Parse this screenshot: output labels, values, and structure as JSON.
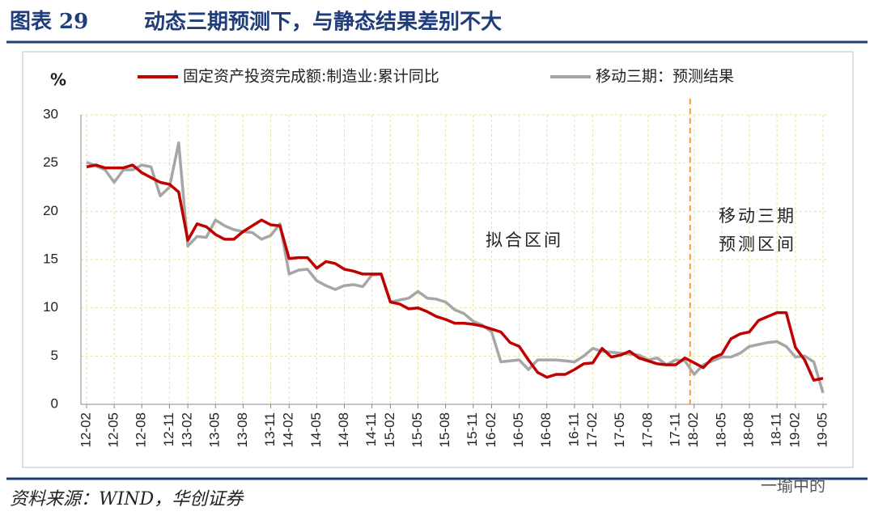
{
  "chart_data": {
    "type": "line",
    "title": "图表 29",
    "subtitle": "动态三期预测下，与静态结果差别不大",
    "y_label": "%",
    "source": "资料来源：WIND，华创证券",
    "watermark": "一瑜中的",
    "annotations": [
      "拟合区间",
      [
        "移动三期",
        "预测区间"
      ]
    ],
    "divider": "18-02",
    "grid": true,
    "legend": "top",
    "ylim": [
      0,
      30
    ],
    "yticks": [
      0,
      5,
      10,
      15,
      20,
      25,
      30
    ],
    "categories": [
      "12-02",
      null,
      null,
      "12-05",
      null,
      null,
      "12-08",
      null,
      null,
      "12-11",
      null,
      "13-02",
      null,
      null,
      "13-05",
      null,
      null,
      "13-08",
      null,
      null,
      "13-11",
      null,
      "14-02",
      null,
      null,
      "14-05",
      null,
      null,
      "14-08",
      null,
      null,
      "14-11",
      null,
      "15-02",
      null,
      null,
      "15-05",
      null,
      null,
      "15-08",
      null,
      null,
      "15-11",
      null,
      "16-02",
      null,
      null,
      "16-05",
      null,
      null,
      "16-08",
      null,
      null,
      "16-11",
      null,
      "17-02",
      null,
      null,
      "17-05",
      null,
      null,
      "17-08",
      null,
      null,
      "17-11",
      null,
      "18-02",
      null,
      null,
      "18-05",
      null,
      null,
      "18-08",
      null,
      null,
      "18-11",
      null,
      "19-02",
      null,
      null,
      "19-05"
    ],
    "series": [
      {
        "name": "固定资产投资完成额:制造业:累计同比",
        "color": "#c00000",
        "values": [
          24.6,
          24.8,
          24.5,
          24.5,
          24.5,
          24.8,
          24.0,
          23.5,
          23.0,
          22.8,
          22.0,
          17.0,
          18.7,
          18.4,
          17.6,
          17.1,
          17.1,
          17.9,
          18.5,
          19.1,
          18.6,
          18.5,
          15.1,
          15.2,
          15.2,
          14.1,
          14.8,
          14.6,
          14.0,
          13.8,
          13.5,
          13.5,
          13.5,
          10.6,
          10.4,
          9.9,
          10.0,
          9.6,
          9.1,
          8.8,
          8.4,
          8.4,
          8.3,
          8.1,
          7.8,
          7.5,
          6.4,
          6.0,
          4.6,
          3.3,
          2.8,
          3.1,
          3.1,
          3.6,
          4.2,
          4.3,
          5.8,
          4.9,
          5.1,
          5.5,
          4.8,
          4.5,
          4.2,
          4.1,
          4.1,
          4.8,
          4.3,
          3.8,
          4.8,
          5.2,
          6.8,
          7.3,
          7.5,
          8.7,
          9.1,
          9.5,
          9.5,
          5.9,
          4.6,
          2.5,
          2.7
        ]
      },
      {
        "name": "移动三期：预测结果",
        "color": "#a6a6a6",
        "values": [
          25.1,
          24.7,
          24.3,
          23.0,
          24.3,
          24.3,
          24.8,
          24.6,
          21.6,
          22.5,
          27.1,
          16.4,
          17.4,
          17.3,
          19.1,
          18.5,
          18.1,
          17.9,
          17.8,
          17.1,
          17.5,
          18.7,
          13.5,
          13.9,
          14.0,
          12.8,
          12.3,
          11.9,
          12.3,
          12.4,
          12.2,
          13.4,
          13.5,
          10.6,
          10.8,
          11.0,
          11.7,
          11.0,
          10.9,
          10.6,
          9.8,
          9.4,
          8.6,
          8.2,
          7.5,
          4.4,
          4.5,
          4.6,
          3.6,
          4.6,
          4.6,
          4.6,
          4.5,
          4.4,
          5.0,
          5.8,
          5.5,
          5.4,
          5.3,
          5.2,
          5.1,
          4.6,
          4.8,
          4.1,
          4.6,
          4.5,
          3.1,
          4.1,
          4.5,
          4.9,
          4.9,
          5.3,
          6.0,
          6.2,
          6.4,
          6.5,
          6.0,
          4.9,
          5.0,
          4.4,
          1.2
        ]
      }
    ]
  }
}
